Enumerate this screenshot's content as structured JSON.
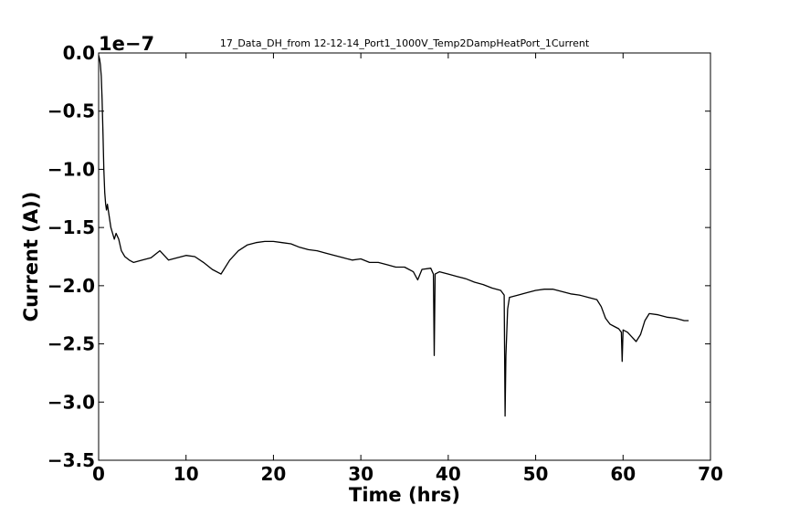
{
  "chart_data": {
    "type": "line",
    "title": "17_Data_DH_from 12-12-14_Port1_1000V_Temp2DampHeatPort_1Current",
    "xlabel": "Time (hrs)",
    "ylabel": "Current (A))",
    "y_offset_label": "1e−7",
    "xlim": [
      0,
      70
    ],
    "ylim": [
      -3.5,
      0.0
    ],
    "x_ticks": [
      0,
      10,
      20,
      30,
      40,
      50,
      60,
      70
    ],
    "x_tick_labels": [
      "0",
      "10",
      "20",
      "30",
      "40",
      "50",
      "60",
      "70"
    ],
    "y_ticks": [
      0.0,
      -0.5,
      -1.0,
      -1.5,
      -2.0,
      -2.5,
      -3.0,
      -3.5
    ],
    "y_tick_labels": [
      "0.0",
      "−0.5",
      "−1.0",
      "−1.5",
      "−2.0",
      "−2.5",
      "−3.0",
      "−3.5"
    ],
    "grid": false,
    "series": [
      {
        "color": "#000000",
        "x": [
          0.0,
          0.1,
          0.2,
          0.3,
          0.4,
          0.5,
          0.6,
          0.7,
          0.8,
          0.9,
          1.0,
          1.2,
          1.4,
          1.6,
          1.8,
          2.0,
          2.3,
          2.6,
          3.0,
          3.5,
          4.0,
          5.0,
          6.0,
          7.0,
          8.0,
          9.0,
          10.0,
          11.0,
          12.0,
          13.0,
          14.0,
          15.0,
          16.0,
          17.0,
          18.0,
          19.0,
          20.0,
          21.0,
          22.0,
          23.0,
          24.0,
          25.0,
          26.0,
          27.0,
          28.0,
          29.0,
          30.0,
          31.0,
          32.0,
          33.0,
          34.0,
          35.0,
          36.0,
          36.5,
          37.0,
          38.0,
          38.3,
          38.4,
          38.5,
          39.0,
          40.0,
          41.0,
          42.0,
          43.0,
          44.0,
          45.0,
          46.0,
          46.4,
          46.5,
          46.6,
          46.8,
          47.0,
          48.0,
          49.0,
          50.0,
          51.0,
          52.0,
          53.0,
          54.0,
          55.0,
          56.0,
          57.0,
          57.5,
          58.0,
          58.5,
          59.0,
          59.5,
          59.8,
          59.9,
          60.0,
          60.5,
          61.0,
          61.5,
          62.0,
          62.5,
          63.0,
          64.0,
          65.0,
          66.0,
          67.0,
          67.5
        ],
        "values": [
          -0.02,
          -0.05,
          -0.1,
          -0.2,
          -0.4,
          -0.7,
          -1.0,
          -1.2,
          -1.3,
          -1.35,
          -1.3,
          -1.4,
          -1.5,
          -1.55,
          -1.6,
          -1.55,
          -1.6,
          -1.7,
          -1.75,
          -1.78,
          -1.8,
          -1.78,
          -1.76,
          -1.7,
          -1.78,
          -1.76,
          -1.74,
          -1.75,
          -1.8,
          -1.86,
          -1.9,
          -1.78,
          -1.7,
          -1.65,
          -1.63,
          -1.62,
          -1.62,
          -1.63,
          -1.64,
          -1.67,
          -1.69,
          -1.7,
          -1.72,
          -1.74,
          -1.76,
          -1.78,
          -1.77,
          -1.8,
          -1.8,
          -1.82,
          -1.84,
          -1.84,
          -1.88,
          -1.95,
          -1.86,
          -1.85,
          -1.9,
          -2.6,
          -1.9,
          -1.88,
          -1.9,
          -1.92,
          -1.94,
          -1.97,
          -1.99,
          -2.02,
          -2.04,
          -2.08,
          -3.12,
          -2.6,
          -2.2,
          -2.1,
          -2.08,
          -2.06,
          -2.04,
          -2.03,
          -2.03,
          -2.05,
          -2.07,
          -2.08,
          -2.1,
          -2.12,
          -2.18,
          -2.28,
          -2.33,
          -2.35,
          -2.37,
          -2.4,
          -2.65,
          -2.38,
          -2.4,
          -2.44,
          -2.48,
          -2.42,
          -2.3,
          -2.24,
          -2.25,
          -2.27,
          -2.28,
          -2.3,
          -2.3
        ]
      }
    ]
  }
}
